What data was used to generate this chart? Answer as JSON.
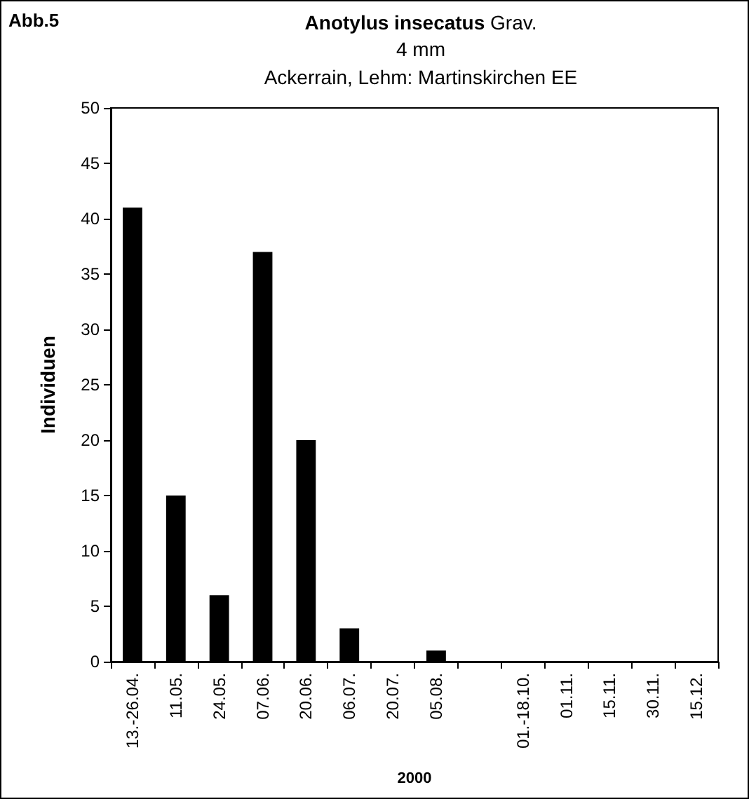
{
  "chart_data": {
    "type": "bar",
    "title": "Anotylus insecatus Grav.",
    "subtitle": "4 mm\nAckerrain, Lehm: Martinskirchen EE",
    "annotations": [
      "Abb.5"
    ],
    "xlabel": "2000",
    "ylabel": "Individuen",
    "categories": [
      "13.-26.04.",
      "11.05.",
      "24.05.",
      "07.06.",
      "20.06.",
      "06.07.",
      "20.07.",
      "05.08.",
      null,
      "01.-18.10.",
      "01.11.",
      "15.11.",
      "30.11.",
      "15.12."
    ],
    "values": [
      41,
      15,
      6,
      37,
      20,
      3,
      0,
      1,
      null,
      0,
      0,
      0,
      0,
      0
    ],
    "color": "#000000",
    "ylim": [
      0,
      50
    ],
    "yticks": [
      0,
      5,
      10,
      15,
      20,
      25,
      30,
      35,
      40,
      45,
      50
    ],
    "grid": false
  }
}
